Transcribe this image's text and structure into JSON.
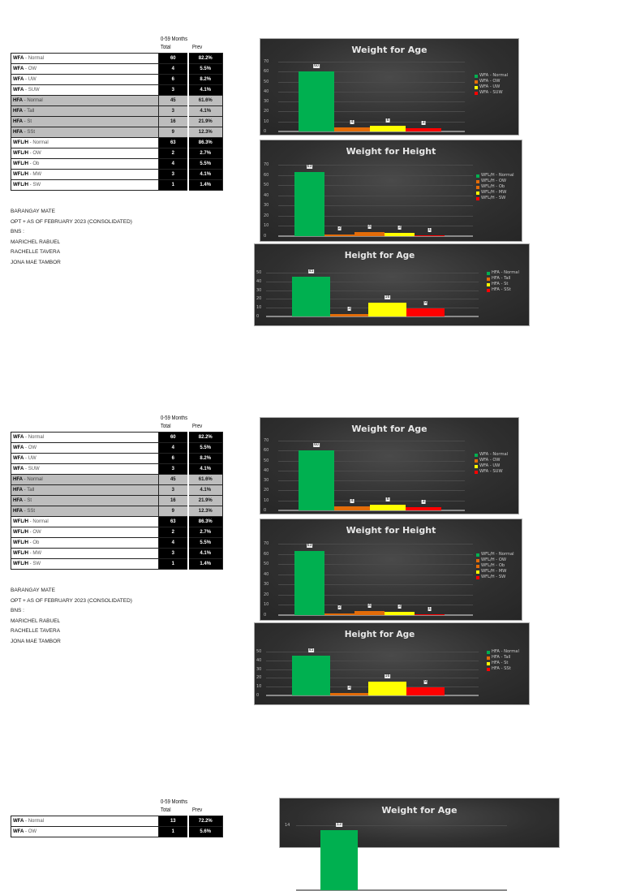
{
  "colors": {
    "normal": "#00b050",
    "ow": "#e36c09",
    "uw": "#ffff00",
    "suw": "#ff0000"
  },
  "sections": [
    {
      "table": {
        "group_header": "0-59 Months",
        "col_total": "Total",
        "col_prev": "Prev",
        "rows": [
          {
            "code": "WFA",
            "cat": "Normal",
            "total": "60",
            "prev": "82.2%",
            "grey": false
          },
          {
            "code": "WFA",
            "cat": "OW",
            "total": "4",
            "prev": "5.5%",
            "grey": false
          },
          {
            "code": "WFA",
            "cat": "UW",
            "total": "6",
            "prev": "8.2%",
            "grey": false
          },
          {
            "code": "WFA",
            "cat": "SUW",
            "total": "3",
            "prev": "4.1%",
            "grey": false
          },
          {
            "code": "HFA",
            "cat": "Normal",
            "total": "45",
            "prev": "61.6%",
            "grey": true
          },
          {
            "code": "HFA",
            "cat": "Tall",
            "total": "3",
            "prev": "4.1%",
            "grey": true
          },
          {
            "code": "HFA",
            "cat": "St",
            "total": "16",
            "prev": "21.9%",
            "grey": true
          },
          {
            "code": "HFA",
            "cat": "SSt",
            "total": "9",
            "prev": "12.3%",
            "grey": true
          },
          {
            "code": "WFL/H",
            "cat": "Normal",
            "total": "63",
            "prev": "86.3%",
            "grey": false
          },
          {
            "code": "WFL/H",
            "cat": "OW",
            "total": "2",
            "prev": "2.7%",
            "grey": false
          },
          {
            "code": "WFL/H",
            "cat": "Ob",
            "total": "4",
            "prev": "5.5%",
            "grey": false
          },
          {
            "code": "WFL/H",
            "cat": "MW",
            "total": "3",
            "prev": "4.1%",
            "grey": false
          },
          {
            "code": "WFL/H",
            "cat": "SW",
            "total": "1",
            "prev": "1.4%",
            "grey": false
          }
        ]
      },
      "notes": [
        "BARANGAY MATE",
        "OPT + AS OF FEBRUARY 2023 (CONSOLIDATED)",
        "BNS :",
        "MARICHEL RABUEL",
        "RACHELLE TAVERA",
        "JONA MAE TAMBOR"
      ]
    }
  ],
  "chart_data": [
    {
      "type": "bar",
      "title": "Weight for Age",
      "categories": [
        "WFA - Normal",
        "WFA - OW",
        "WFA - UW",
        "WFA - SUW"
      ],
      "values": [
        60,
        4,
        6,
        3
      ],
      "ylim": [
        0,
        70
      ],
      "yticks": [
        0,
        10,
        20,
        30,
        40,
        50,
        60,
        70
      ],
      "grid": true,
      "legend_position": "right",
      "colors": [
        "#00b050",
        "#e36c09",
        "#ffff00",
        "#ff0000"
      ]
    },
    {
      "type": "bar",
      "title": "Weight for Height",
      "categories": [
        "WFL/H - Normal",
        "WFL/H - OW",
        "WFL/H - Ob",
        "WFL/H - MW",
        "WFL/H - SW"
      ],
      "values": [
        63,
        2,
        4,
        3,
        1
      ],
      "ylim": [
        0,
        70
      ],
      "yticks": [
        0,
        10,
        20,
        30,
        40,
        50,
        60,
        70
      ],
      "grid": true,
      "legend_position": "right",
      "colors": [
        "#00b050",
        "#e36c09",
        "#e36c09",
        "#ffff00",
        "#ff0000"
      ]
    },
    {
      "type": "bar",
      "title": "Height for Age",
      "categories": [
        "HFA - Normal",
        "HFA - Tall",
        "HFA - St",
        "HFA - SSt"
      ],
      "values": [
        45,
        3,
        16,
        9
      ],
      "ylim": [
        0,
        50
      ],
      "yticks": [
        0,
        10,
        20,
        30,
        40,
        50
      ],
      "grid": true,
      "legend_position": "right",
      "colors": [
        "#00b050",
        "#e36c09",
        "#ffff00",
        "#ff0000"
      ]
    },
    {
      "type": "bar",
      "title": "Weight for Age",
      "categories": [
        "WFA - Normal"
      ],
      "values": [
        13
      ],
      "ylim": [
        0,
        14
      ],
      "yticks": [
        14
      ],
      "grid": true,
      "legend_position": "right",
      "colors": [
        "#00b050"
      ]
    }
  ],
  "bottom_table": {
    "group_header": "0-59 Months",
    "col_total": "Total",
    "col_prev": "Prev",
    "rows": [
      {
        "code": "WFA",
        "cat": "Normal",
        "total": "13",
        "prev": "72.2%"
      },
      {
        "code": "WFA",
        "cat": "OW",
        "total": "1",
        "prev": "5.6%"
      }
    ]
  }
}
